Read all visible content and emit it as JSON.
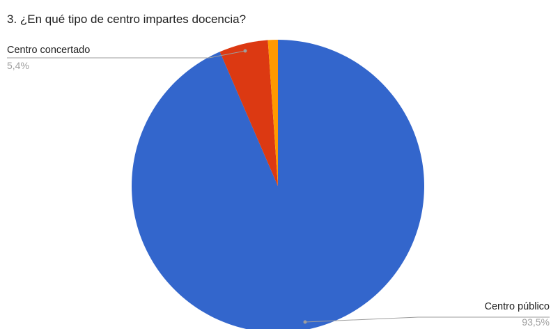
{
  "chart_data": {
    "type": "pie",
    "title": "3. ¿En qué tipo de centro impartes docencia?",
    "slices": [
      {
        "name": "Centro público",
        "value": 93.5,
        "value_label": "93,5%",
        "color": "#3366cc",
        "labeled": true
      },
      {
        "name": "Centro concertado",
        "value": 5.4,
        "value_label": "5,4%",
        "color": "#dc3912",
        "labeled": true
      },
      {
        "name": "",
        "value": 1.1,
        "value_label": "",
        "color": "#ff9900",
        "labeled": false
      }
    ],
    "legend": "none"
  }
}
